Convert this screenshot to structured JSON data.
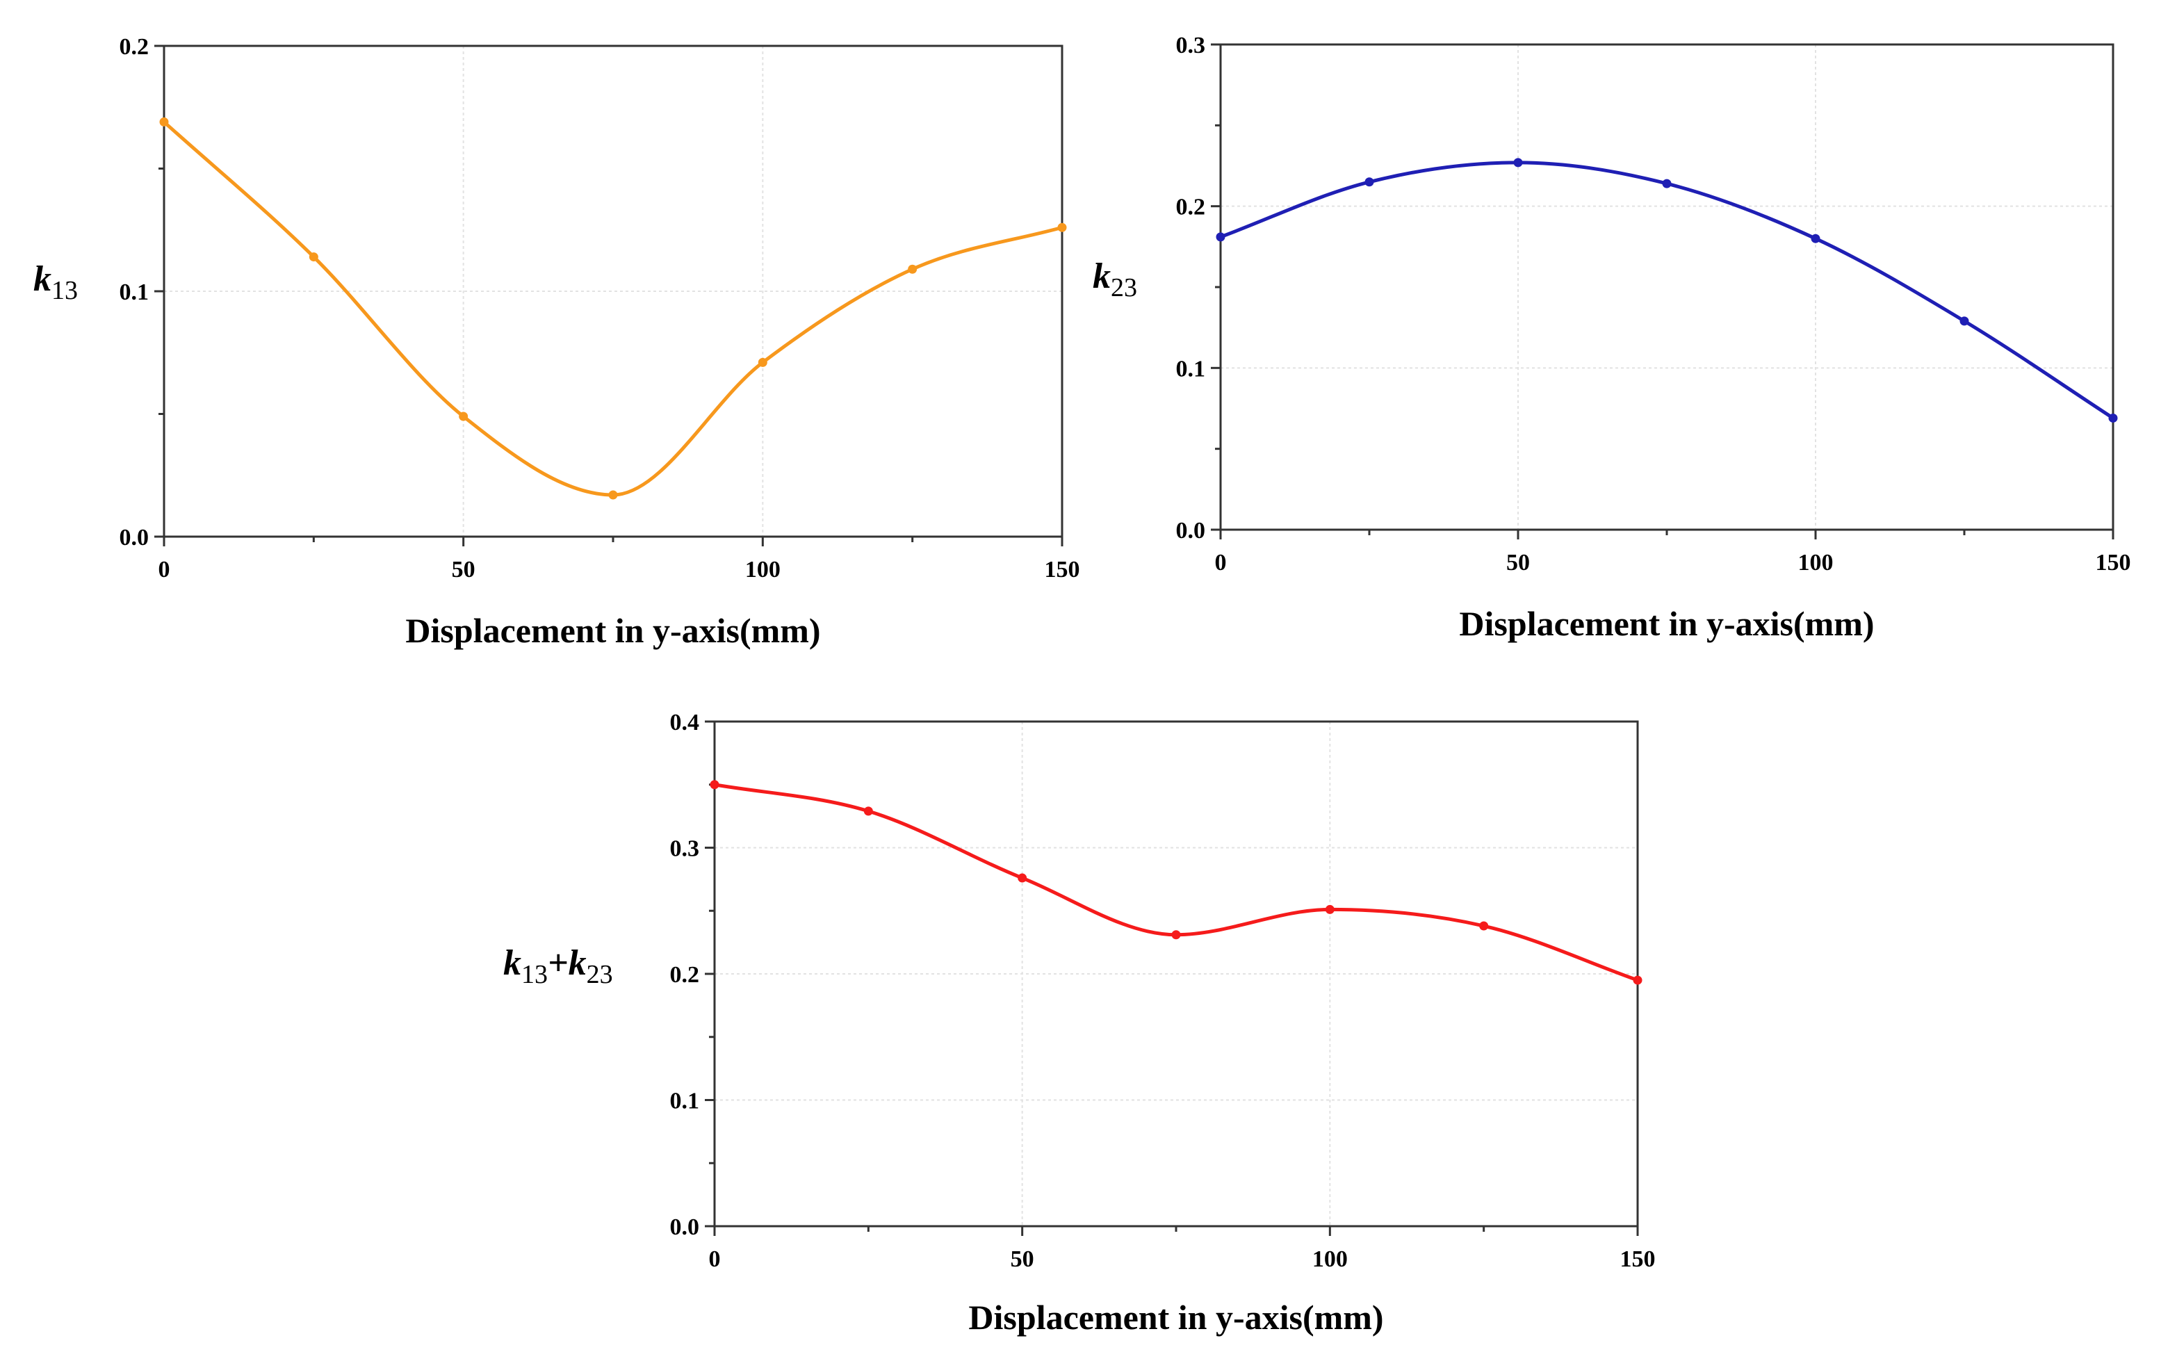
{
  "chart_data": [
    {
      "id": "k13",
      "type": "line",
      "title": "",
      "xlabel": "Displacement in y-axis(mm)",
      "ylabel": {
        "main": "k",
        "sub": "13"
      },
      "xlim": [
        0,
        150
      ],
      "ylim": [
        0,
        0.2
      ],
      "xticks": [
        0,
        50,
        100,
        150
      ],
      "yticks": [
        0.0,
        0.1,
        0.2
      ],
      "ytick_labels": [
        "0.0",
        "0.1",
        "0.2"
      ],
      "grid": true,
      "color": "#F7981D",
      "series": [
        {
          "x": [
            0,
            25,
            50,
            75,
            100,
            125,
            150
          ],
          "y": [
            0.169,
            0.114,
            0.049,
            0.017,
            0.071,
            0.109,
            0.126
          ]
        }
      ]
    },
    {
      "id": "k23",
      "type": "line",
      "title": "",
      "xlabel": "Displacement in y-axis(mm)",
      "ylabel": {
        "main": "k",
        "sub": "23"
      },
      "xlim": [
        0,
        150
      ],
      "ylim": [
        0,
        0.3
      ],
      "xticks": [
        0,
        50,
        100,
        150
      ],
      "yticks": [
        0.0,
        0.1,
        0.2,
        0.3
      ],
      "ytick_labels": [
        "0.0",
        "0.1",
        "0.2",
        "0.3"
      ],
      "grid": true,
      "color": "#1F1FB4",
      "series": [
        {
          "x": [
            0,
            25,
            50,
            75,
            100,
            125,
            150
          ],
          "y": [
            0.181,
            0.215,
            0.227,
            0.214,
            0.18,
            0.129,
            0.069
          ]
        }
      ]
    },
    {
      "id": "ksum",
      "type": "line",
      "title": "",
      "xlabel": "Displacement in y-axis(mm)",
      "ylabel": {
        "main": "k",
        "sub": "13",
        "plus": "+",
        "main2": "k",
        "sub2": "23"
      },
      "xlim": [
        0,
        150
      ],
      "ylim": [
        0,
        0.4
      ],
      "xticks": [
        0,
        50,
        100,
        150
      ],
      "yticks": [
        0.0,
        0.1,
        0.2,
        0.3,
        0.4
      ],
      "ytick_labels": [
        "0.0",
        "0.1",
        "0.2",
        "0.3",
        "0.4"
      ],
      "grid": true,
      "color": "#F51B1B",
      "series": [
        {
          "x": [
            0,
            25,
            50,
            75,
            100,
            125,
            150
          ],
          "y": [
            0.35,
            0.329,
            0.276,
            0.231,
            0.251,
            0.238,
            0.195
          ]
        }
      ]
    }
  ]
}
